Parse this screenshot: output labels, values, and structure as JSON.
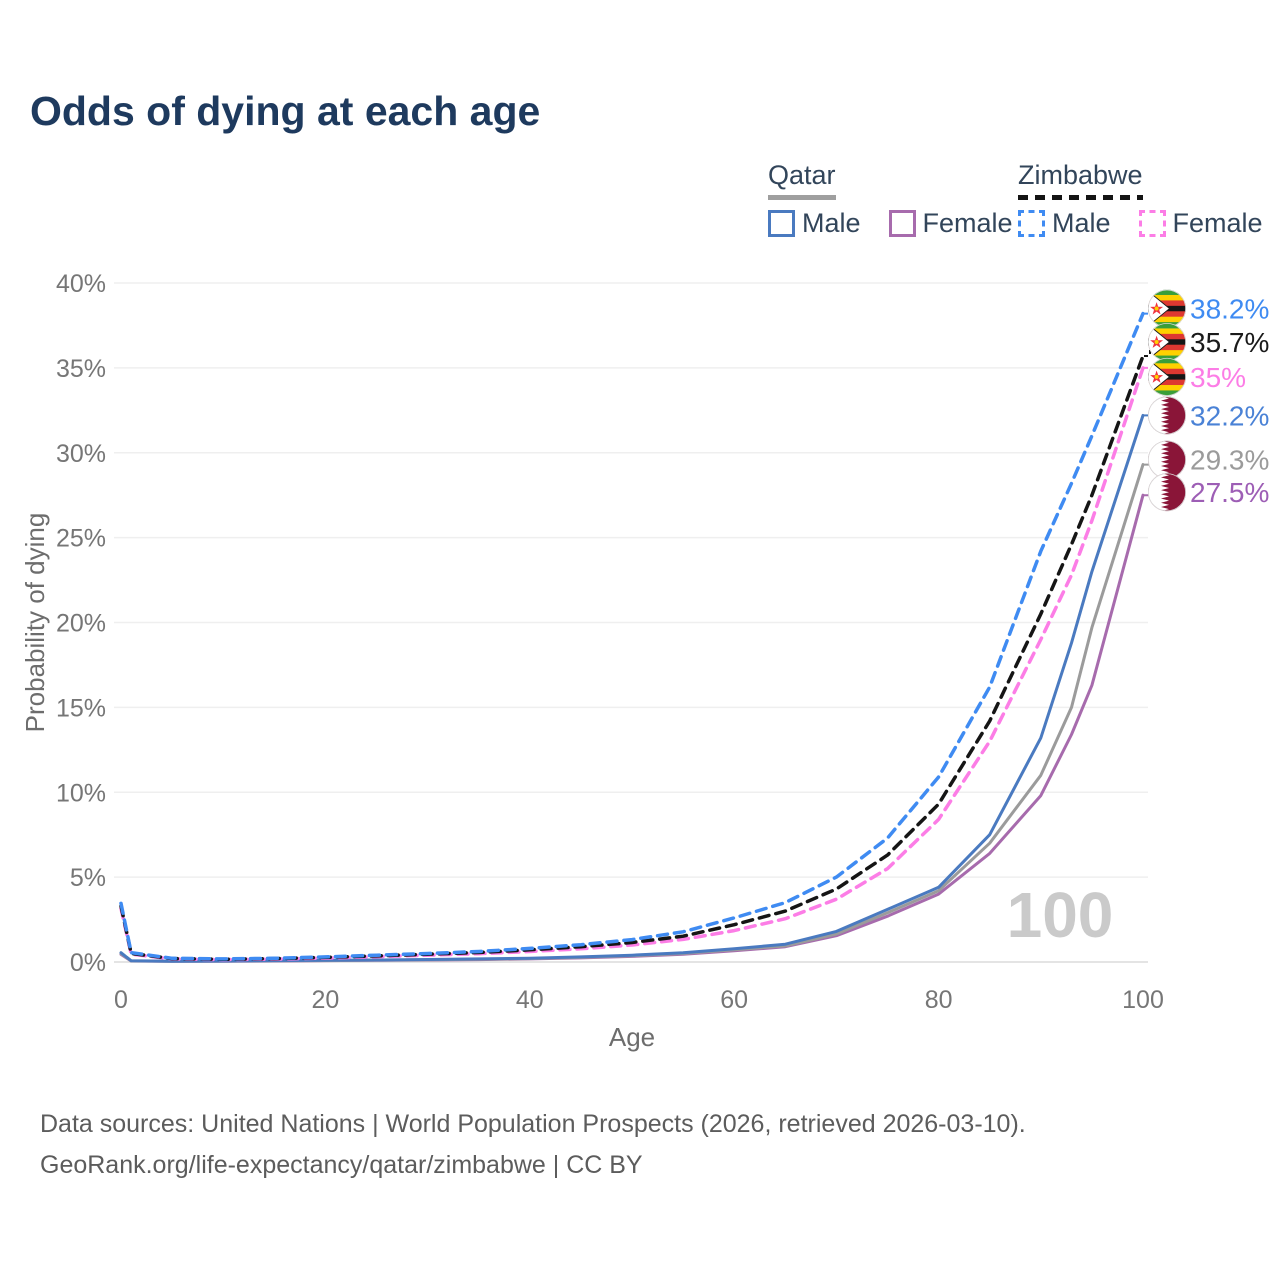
{
  "title": "Odds of dying at each age",
  "legend": {
    "groups": [
      {
        "country": "Qatar",
        "underline_style": "solid",
        "underline_color": "#9f9f9f",
        "items": [
          {
            "label": "Male",
            "color": "#4a7ac0",
            "dash": false
          },
          {
            "label": "Female",
            "color": "#a76bad",
            "dash": false
          }
        ]
      },
      {
        "country": "Zimbabwe",
        "underline_style": "dashed",
        "underline_color": "#141414",
        "items": [
          {
            "label": "Male",
            "color": "#3f8bf2",
            "dash": true
          },
          {
            "label": "Female",
            "color": "#fc7de6",
            "dash": true
          }
        ]
      }
    ]
  },
  "chart_data": {
    "type": "line",
    "title": "Odds of dying at each age",
    "xlabel": "Age",
    "ylabel": "Probability of dying",
    "xlim": [
      0,
      100
    ],
    "ylim": [
      0,
      40
    ],
    "x_ticks": [
      0,
      20,
      40,
      60,
      80,
      100
    ],
    "y_ticks": [
      0,
      5,
      10,
      15,
      20,
      25,
      30,
      35,
      40
    ],
    "y_tick_suffix": "%",
    "grid": true,
    "legend_position": "top-right",
    "watermark": "100",
    "ages": [
      0,
      1,
      5,
      10,
      15,
      20,
      25,
      30,
      35,
      40,
      45,
      50,
      55,
      60,
      65,
      70,
      75,
      80,
      85,
      90,
      93,
      95,
      100
    ],
    "series": [
      {
        "id": "zimbabwe-male",
        "name": "Zimbabwe Male",
        "country": "Zimbabwe",
        "sex": "Male",
        "color": "#3f8bf2",
        "dashed": true,
        "flag": "zimbabwe",
        "end_label": "38.2%",
        "end_value": 38.2,
        "label_color": "#3f8bf2",
        "label_dy": -5,
        "values": [
          3.45,
          0.55,
          0.22,
          0.18,
          0.22,
          0.3,
          0.4,
          0.5,
          0.62,
          0.8,
          1.02,
          1.32,
          1.78,
          2.6,
          3.5,
          5.0,
          7.3,
          10.9,
          16.2,
          24.2,
          28.2,
          31.0,
          38.2
        ]
      },
      {
        "id": "zimbabwe-both",
        "name": "Zimbabwe Both sexes",
        "country": "Zimbabwe",
        "sex": "Both sexes",
        "color": "#151515",
        "dashed": true,
        "flag": "zimbabwe",
        "end_label": "35.7%",
        "end_value": 35.7,
        "label_color": "#1a1a1a",
        "label_dy": -14,
        "values": [
          3.3,
          0.5,
          0.2,
          0.16,
          0.2,
          0.27,
          0.36,
          0.46,
          0.56,
          0.72,
          0.9,
          1.15,
          1.52,
          2.2,
          3.0,
          4.3,
          6.3,
          9.3,
          14.2,
          20.5,
          24.6,
          27.5,
          35.7
        ]
      },
      {
        "id": "zimbabwe-female",
        "name": "Zimbabwe Female",
        "country": "Zimbabwe",
        "sex": "Female",
        "color": "#fc7de6",
        "dashed": true,
        "flag": "zimbabwe",
        "end_label": "35%",
        "end_value": 35,
        "label_color": "#fc7de6",
        "label_dy": 9,
        "values": [
          3.15,
          0.46,
          0.18,
          0.14,
          0.17,
          0.23,
          0.31,
          0.4,
          0.49,
          0.62,
          0.78,
          1.0,
          1.33,
          1.85,
          2.55,
          3.7,
          5.5,
          8.4,
          13.0,
          19.0,
          22.8,
          26.0,
          35.0
        ]
      },
      {
        "id": "qatar-male",
        "name": "Qatar Male",
        "country": "Qatar",
        "sex": "Male",
        "color": "#4a7ac0",
        "dashed": false,
        "flag": "qatar",
        "end_label": "32.2%",
        "end_value": 32.2,
        "label_color": "#4a82d6",
        "label_dy": 0,
        "values": [
          0.55,
          0.07,
          0.05,
          0.06,
          0.08,
          0.1,
          0.12,
          0.15,
          0.18,
          0.22,
          0.3,
          0.4,
          0.55,
          0.78,
          1.05,
          1.8,
          3.1,
          4.4,
          7.5,
          13.2,
          18.8,
          23.0,
          32.2
        ]
      },
      {
        "id": "qatar-both",
        "name": "Qatar Both sexes",
        "country": "Qatar",
        "sex": "Both sexes",
        "color": "#9b9b9b",
        "dashed": false,
        "flag": "qatar",
        "end_label": "29.3%",
        "end_value": 29.3,
        "label_color": "#9b9b9b",
        "label_dy": -5,
        "values": [
          0.5,
          0.065,
          0.045,
          0.055,
          0.07,
          0.09,
          0.11,
          0.13,
          0.16,
          0.2,
          0.27,
          0.37,
          0.5,
          0.72,
          0.95,
          1.65,
          2.9,
          4.2,
          7.0,
          11.0,
          15.0,
          19.7,
          29.3
        ]
      },
      {
        "id": "qatar-female",
        "name": "Qatar Female",
        "country": "Qatar",
        "sex": "Female",
        "color": "#a76bad",
        "dashed": false,
        "flag": "qatar",
        "end_label": "27.5%",
        "end_value": 27.5,
        "label_color": "#9d5eb5",
        "label_dy": -3,
        "values": [
          0.45,
          0.06,
          0.04,
          0.05,
          0.06,
          0.08,
          0.1,
          0.12,
          0.14,
          0.18,
          0.24,
          0.33,
          0.46,
          0.66,
          0.9,
          1.55,
          2.7,
          4.0,
          6.4,
          9.8,
          13.4,
          16.3,
          27.5
        ]
      }
    ]
  },
  "footer": {
    "line1": "Data sources: United Nations | World Population Prospects (2026, retrieved 2026-03-10).",
    "line2": "GeoRank.org/life-expectancy/qatar/zimbabwe | CC BY"
  }
}
